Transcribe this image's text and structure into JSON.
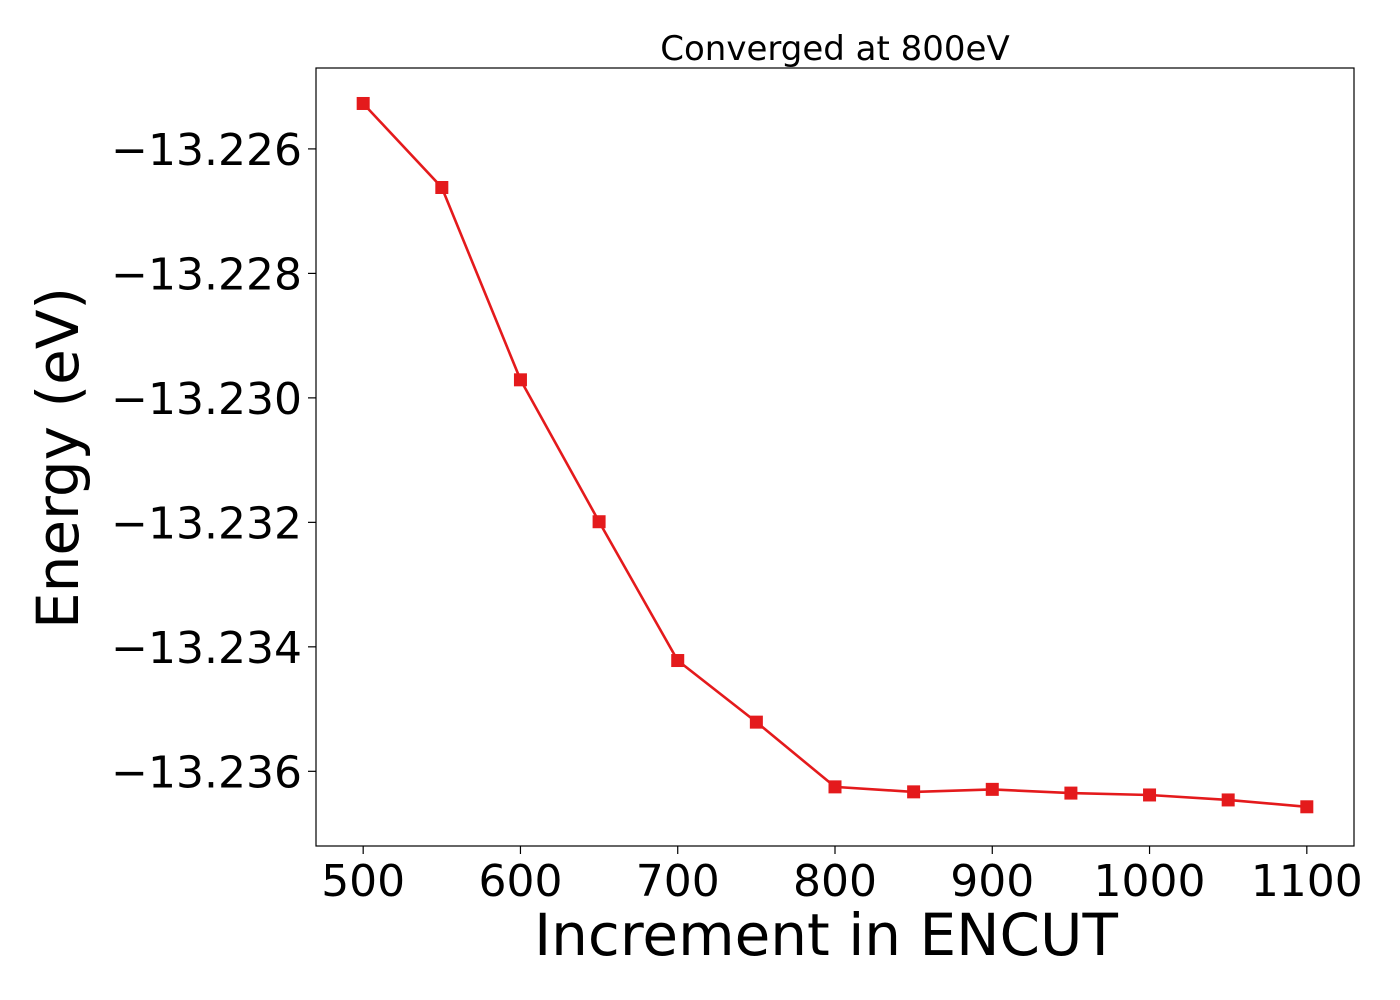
{
  "chart_data": {
    "type": "line",
    "title": "Converged at 800eV",
    "xlabel": "Increment in ENCUT",
    "ylabel": "Energy (eV)",
    "xlim": [
      470,
      1130
    ],
    "ylim": [
      -13.2372,
      -13.2247
    ],
    "x_ticks": [
      500,
      600,
      700,
      800,
      900,
      1000,
      1100
    ],
    "x_tick_labels": [
      "500",
      "600",
      "700",
      "800",
      "900",
      "1000",
      "1100"
    ],
    "y_ticks": [
      -13.226,
      -13.228,
      -13.23,
      -13.232,
      -13.234,
      -13.236
    ],
    "y_tick_labels": [
      "−13.226",
      "−13.228",
      "−13.230",
      "−13.232",
      "−13.234",
      "−13.236"
    ],
    "grid": false,
    "marker": "square",
    "color": "#e41a1c",
    "series": [
      {
        "x": [
          500,
          550,
          600,
          650,
          700,
          750,
          800,
          850,
          900,
          950,
          1000,
          1050,
          1100
        ],
        "y": [
          -13.22527,
          -13.22662,
          -13.22971,
          -13.23199,
          -13.23422,
          -13.23521,
          -13.23625,
          -13.23633,
          -13.23629,
          -13.23635,
          -13.23638,
          -13.23646,
          -13.23657
        ]
      }
    ]
  }
}
